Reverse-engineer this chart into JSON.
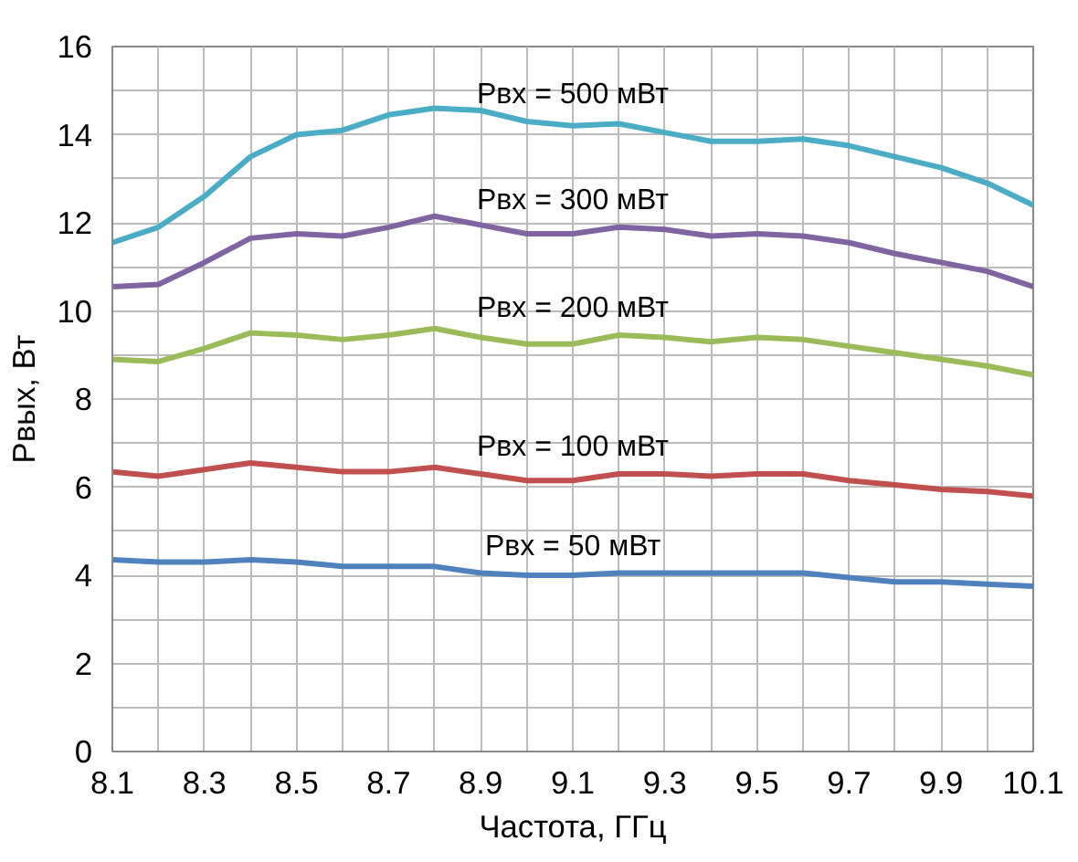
{
  "chart_data": {
    "type": "line",
    "xlabel": "Частота, ГГц",
    "ylabel": "Pвых, Вт",
    "x": [
      8.1,
      8.2,
      8.3,
      8.4,
      8.5,
      8.6,
      8.7,
      8.8,
      8.9,
      9.0,
      9.1,
      9.2,
      9.3,
      9.4,
      9.5,
      9.6,
      9.7,
      9.8,
      9.9,
      10.0,
      10.1
    ],
    "series": [
      {
        "name": "Pвх = 500 мВт",
        "color": "#4bacc6",
        "values": [
          11.55,
          11.9,
          12.6,
          13.5,
          14.0,
          14.1,
          14.45,
          14.6,
          14.55,
          14.3,
          14.2,
          14.25,
          14.05,
          13.85,
          13.85,
          13.9,
          13.75,
          13.5,
          13.25,
          12.9,
          12.4
        ]
      },
      {
        "name": "Pвх = 300 мВт",
        "color": "#8064a2",
        "values": [
          10.55,
          10.6,
          11.1,
          11.65,
          11.75,
          11.7,
          11.9,
          12.15,
          11.95,
          11.75,
          11.75,
          11.9,
          11.85,
          11.7,
          11.75,
          11.7,
          11.55,
          11.3,
          11.1,
          10.9,
          10.55
        ]
      },
      {
        "name": "Pвх = 200 мВт",
        "color": "#9bbb59",
        "values": [
          8.9,
          8.85,
          9.15,
          9.5,
          9.45,
          9.35,
          9.45,
          9.6,
          9.4,
          9.25,
          9.25,
          9.45,
          9.4,
          9.3,
          9.4,
          9.35,
          9.2,
          9.05,
          8.9,
          8.75,
          8.55
        ]
      },
      {
        "name": "Pвх = 100 мВт",
        "color": "#c0504d",
        "values": [
          6.35,
          6.25,
          6.4,
          6.55,
          6.45,
          6.35,
          6.35,
          6.45,
          6.3,
          6.15,
          6.15,
          6.3,
          6.3,
          6.25,
          6.3,
          6.3,
          6.15,
          6.05,
          5.95,
          5.9,
          5.8
        ]
      },
      {
        "name": "Pвх = 50 мВт",
        "color": "#4f81bd",
        "values": [
          4.35,
          4.3,
          4.3,
          4.35,
          4.3,
          4.2,
          4.2,
          4.2,
          4.05,
          4.0,
          4.0,
          4.05,
          4.05,
          4.05,
          4.05,
          4.05,
          3.95,
          3.85,
          3.85,
          3.8,
          3.75
        ]
      }
    ],
    "xlim": [
      8.1,
      10.1
    ],
    "xticks": [
      8.1,
      {
        "value": 8.2,
        "label": null
      },
      8.3,
      {
        "value": 8.4,
        "label": null
      },
      8.5,
      {
        "value": 8.6,
        "label": null
      },
      8.7,
      {
        "value": 8.8,
        "label": null
      },
      8.9,
      {
        "value": 9.0,
        "label": null
      },
      9.1,
      {
        "value": 9.2,
        "label": null
      },
      9.3,
      {
        "value": 9.4,
        "label": null
      },
      9.5,
      {
        "value": 9.6,
        "label": null
      },
      9.7,
      {
        "value": 9.8,
        "label": null
      },
      9.9,
      {
        "value": 10.0,
        "label": null
      },
      10.1
    ],
    "ylim": [
      0,
      16
    ],
    "yticks": [
      0,
      {
        "value": 1,
        "label": null
      },
      2,
      {
        "value": 3,
        "label": null
      },
      4,
      {
        "value": 5,
        "label": null
      },
      6,
      {
        "value": 7,
        "label": null
      },
      8,
      {
        "value": 9,
        "label": null
      },
      10,
      {
        "value": 11,
        "label": null
      },
      12,
      {
        "value": 13,
        "label": null
      },
      14,
      {
        "value": 15,
        "label": null
      },
      16
    ],
    "grid": true,
    "marker": "none",
    "line_style": "solid"
  }
}
